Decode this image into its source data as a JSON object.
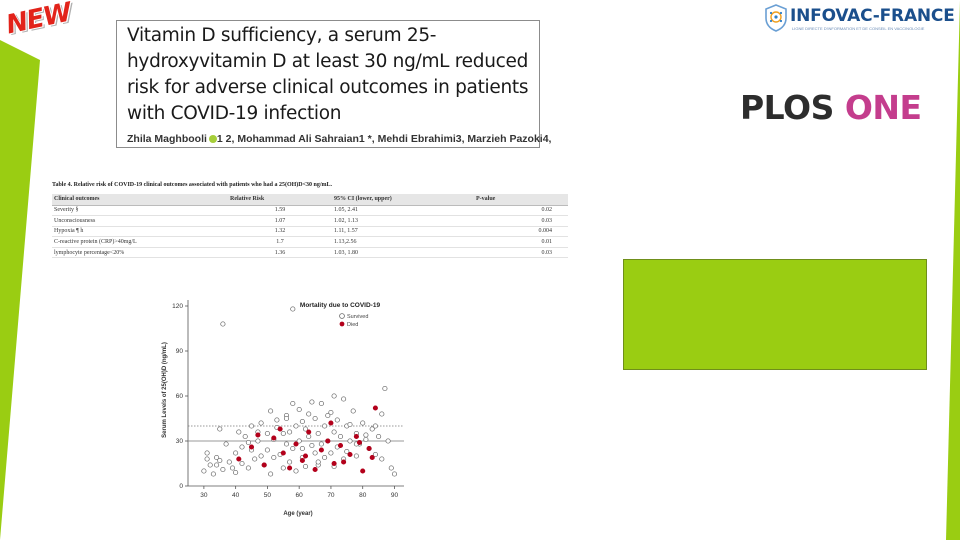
{
  "badge": {
    "text": "NEW"
  },
  "article": {
    "title": "Vitamin D sufficiency, a serum 25-hydroxyvitamin D at least 30 ng/mL reduced risk for adverse clinical outcomes in patients with COVID-19 infection",
    "authors_before_orcid": "Zhila Maghbooli",
    "authors_after_orcid": "1 2, Mohammad Ali Sahraian1 *, Mehdi Ebrahimi3, Marzieh Pazoki4,"
  },
  "logos": {
    "infovac_name": "INFOVAC-FRANCE",
    "infovac_tagline": "LIGNE DIRECTE D'INFORMATION ET DE CONSEIL EN VACCINOLOGIE",
    "plos_word": "PLOS",
    "one_word": "ONE"
  },
  "colors": {
    "green_accent": "#9acd12",
    "plos_pink": "#c43d8d",
    "infovac_blue": "#1b4f8c",
    "dead_marker": "#b3001b"
  },
  "table": {
    "caption": "Table 4.  Relative risk of COVID-19 clinical outcomes associated with patients who had a 25(OH)D<30 ng/mL.",
    "headers": [
      "Clinical outcomes",
      "Relative Risk",
      "95% CI (lower, upper)",
      "P-value"
    ],
    "rows": [
      [
        "Severity §",
        "1.59",
        "1.05, 2.41",
        "0.02"
      ],
      [
        "Unconsciousness",
        "1.07",
        "1.02, 1.13",
        "0.03"
      ],
      [
        "Hypoxia ¶ h",
        "1.32",
        "1.11, 1.57",
        "0.004"
      ],
      [
        "C-reactive protein (CRP)>40mg/L",
        "1.7",
        "1.13,2.56",
        "0.01"
      ],
      [
        "lymphocyte percentage<20%",
        "1.36",
        "1.03, 1.80",
        "0.03"
      ]
    ]
  },
  "chart_data": {
    "type": "scatter",
    "title": "Mortality due to COVID-19",
    "xlabel": "Age (year)",
    "ylabel": "Serum Levels of 25(OH)D (ng/mL)",
    "xlim": [
      25,
      93
    ],
    "ylim": [
      0,
      124
    ],
    "xticks": [
      30,
      40,
      50,
      60,
      70,
      80,
      90
    ],
    "yticks": [
      0,
      30,
      60,
      90,
      120
    ],
    "reference_lines": [
      {
        "y": 40,
        "style": "dotted"
      },
      {
        "y": 30,
        "style": "solid"
      }
    ],
    "legend_position": "top-right",
    "series": [
      {
        "name": "Survived",
        "marker": "open-circle",
        "x": [
          30,
          31,
          32,
          33,
          34,
          35,
          35,
          36,
          37,
          38,
          39,
          40,
          41,
          42,
          42,
          43,
          44,
          45,
          45,
          46,
          47,
          48,
          48,
          49,
          50,
          50,
          51,
          52,
          52,
          53,
          54,
          55,
          55,
          56,
          56,
          57,
          57,
          58,
          58,
          59,
          59,
          60,
          60,
          61,
          61,
          62,
          62,
          63,
          63,
          64,
          65,
          65,
          66,
          66,
          67,
          67,
          68,
          68,
          69,
          70,
          70,
          71,
          71,
          72,
          72,
          73,
          74,
          75,
          75,
          76,
          77,
          78,
          78,
          79,
          80,
          81,
          82,
          83,
          84,
          85,
          86,
          87,
          88,
          90,
          36,
          58,
          31,
          34,
          40,
          44,
          53,
          64,
          69,
          74,
          78,
          84,
          89,
          47,
          51,
          56,
          61,
          66,
          71,
          76,
          81,
          86
        ],
        "y": [
          10,
          22,
          14,
          8,
          19,
          17,
          38,
          11,
          28,
          16,
          12,
          22,
          36,
          15,
          26,
          33,
          12,
          24,
          40,
          18,
          30,
          20,
          42,
          14,
          35,
          24,
          50,
          19,
          31,
          44,
          21,
          35,
          12,
          28,
          47,
          36,
          16,
          55,
          25,
          40,
          10,
          51,
          30,
          43,
          19,
          38,
          13,
          33,
          48,
          27,
          45,
          22,
          35,
          14,
          55,
          28,
          40,
          19,
          30,
          49,
          22,
          36,
          13,
          44,
          26,
          33,
          18,
          40,
          23,
          30,
          50,
          35,
          20,
          28,
          42,
          31,
          25,
          38,
          21,
          33,
          18,
          65,
          30,
          8,
          108,
          118,
          18,
          14,
          9,
          29,
          39,
          56,
          47,
          58,
          28,
          40,
          12,
          36,
          8,
          45,
          25,
          16,
          60,
          41,
          34,
          48
        ]
      },
      {
        "name": "Died",
        "marker": "filled-circle",
        "x": [
          41,
          45,
          49,
          52,
          55,
          57,
          59,
          61,
          63,
          65,
          67,
          69,
          71,
          73,
          76,
          78,
          80,
          82,
          84,
          54,
          62,
          70,
          74,
          79,
          83,
          47
        ],
        "y": [
          18,
          26,
          14,
          32,
          22,
          12,
          28,
          17,
          36,
          11,
          24,
          30,
          15,
          27,
          21,
          33,
          10,
          25,
          52,
          38,
          20,
          42,
          16,
          29,
          19,
          34
        ]
      }
    ]
  }
}
